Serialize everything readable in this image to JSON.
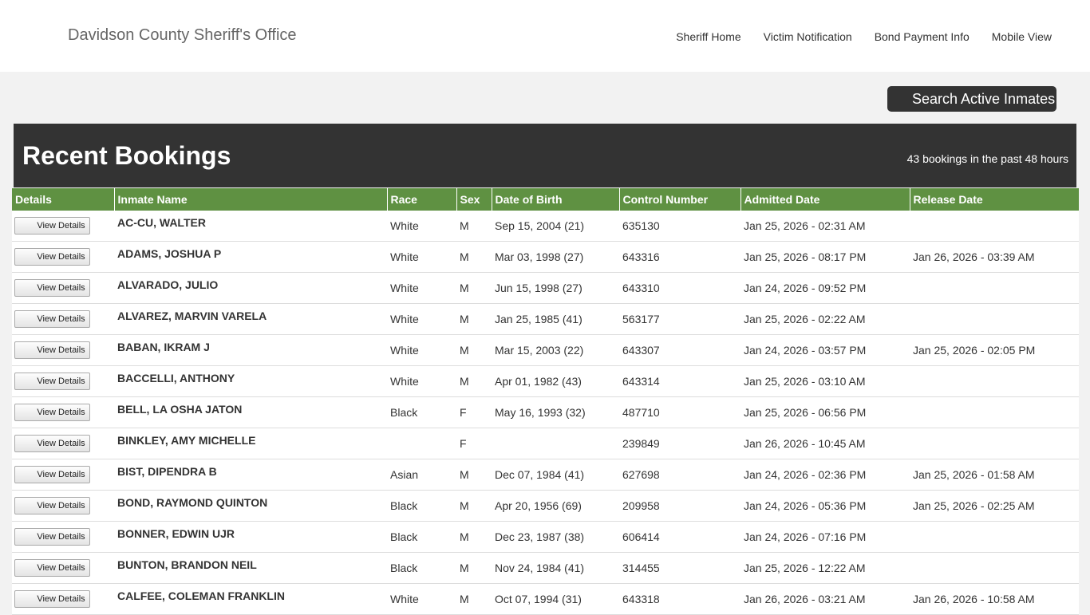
{
  "header": {
    "site_title": "Davidson County Sheriff's Office",
    "nav": [
      "Sheriff Home",
      "Victim Notification",
      "Bond Payment Info",
      "Mobile View"
    ]
  },
  "search_button_label": "Search Active Inmates",
  "panel": {
    "title": "Recent Bookings",
    "count_text": "43 bookings in the past 48 hours"
  },
  "table": {
    "columns": [
      "Details",
      "Inmate Name",
      "Race",
      "Sex",
      "Date of Birth",
      "Control Number",
      "Admitted Date",
      "Release Date"
    ],
    "button_label": "View Details",
    "rows": [
      {
        "name": "AC-CU, WALTER",
        "race": "White",
        "sex": "M",
        "dob": "Sep 15, 2004 (21)",
        "control": "635130",
        "admitted": "Jan 25, 2026 - 02:31 AM",
        "released": ""
      },
      {
        "name": "ADAMS, JOSHUA  P",
        "race": "White",
        "sex": "M",
        "dob": "Mar 03, 1998 (27)",
        "control": "643316",
        "admitted": "Jan 25, 2026 - 08:17 PM",
        "released": "Jan 26, 2026 - 03:39 AM"
      },
      {
        "name": "ALVARADO, JULIO",
        "race": "White",
        "sex": "M",
        "dob": "Jun 15, 1998 (27)",
        "control": "643310",
        "admitted": "Jan 24, 2026 - 09:52 PM",
        "released": ""
      },
      {
        "name": "ALVAREZ, MARVIN  VARELA",
        "race": "White",
        "sex": "M",
        "dob": "Jan 25, 1985 (41)",
        "control": "563177",
        "admitted": "Jan 25, 2026 - 02:22 AM",
        "released": ""
      },
      {
        "name": "BABAN, IKRAM  J",
        "race": "White",
        "sex": "M",
        "dob": "Mar 15, 2003 (22)",
        "control": "643307",
        "admitted": "Jan 24, 2026 - 03:57 PM",
        "released": "Jan 25, 2026 - 02:05 PM"
      },
      {
        "name": "BACCELLI, ANTHONY",
        "race": "White",
        "sex": "M",
        "dob": "Apr 01, 1982 (43)",
        "control": "643314",
        "admitted": "Jan 25, 2026 - 03:10 AM",
        "released": ""
      },
      {
        "name": "BELL, LA OSHA  JATON",
        "race": "Black",
        "sex": "F",
        "dob": "May 16, 1993 (32)",
        "control": "487710",
        "admitted": "Jan 25, 2026 - 06:56 PM",
        "released": ""
      },
      {
        "name": "BINKLEY, AMY  MICHELLE",
        "race": "",
        "sex": "F",
        "dob": "",
        "control": "239849",
        "admitted": "Jan 26, 2026 - 10:45 AM",
        "released": ""
      },
      {
        "name": "BIST, DIPENDRA  B",
        "race": "Asian",
        "sex": "M",
        "dob": "Dec 07, 1984 (41)",
        "control": "627698",
        "admitted": "Jan 24, 2026 - 02:36 PM",
        "released": "Jan 25, 2026 - 01:58 AM"
      },
      {
        "name": "BOND, RAYMOND  QUINTON",
        "race": "Black",
        "sex": "M",
        "dob": "Apr 20, 1956 (69)",
        "control": "209958",
        "admitted": "Jan 24, 2026 - 05:36 PM",
        "released": "Jan 25, 2026 - 02:25 AM"
      },
      {
        "name": "BONNER, EDWIN  UJR",
        "race": "Black",
        "sex": "M",
        "dob": "Dec 23, 1987 (38)",
        "control": "606414",
        "admitted": "Jan 24, 2026 - 07:16 PM",
        "released": ""
      },
      {
        "name": "BUNTON, BRANDON  NEIL",
        "race": "Black",
        "sex": "M",
        "dob": "Nov 24, 1984 (41)",
        "control": "314455",
        "admitted": "Jan 25, 2026 - 12:22 AM",
        "released": ""
      },
      {
        "name": "CALFEE, COLEMAN  FRANKLIN",
        "race": "White",
        "sex": "M",
        "dob": "Oct 07, 1994 (31)",
        "control": "643318",
        "admitted": "Jan 26, 2026 - 03:21 AM",
        "released": "Jan 26, 2026 - 10:58 AM"
      }
    ]
  }
}
